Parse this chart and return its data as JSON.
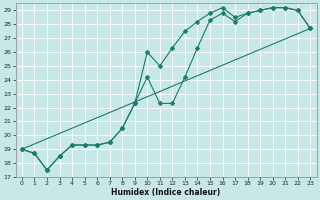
{
  "background_color": "#c8e8e8",
  "grid_color": "#aacccc",
  "line_color": "#1a7a6e",
  "xlabel": "Humidex (Indice chaleur)",
  "ylim": [
    17,
    29.5
  ],
  "xlim": [
    -0.5,
    23.5
  ],
  "yticks": [
    17,
    18,
    19,
    20,
    21,
    22,
    23,
    24,
    25,
    26,
    27,
    28,
    29
  ],
  "xticks": [
    0,
    1,
    2,
    3,
    4,
    5,
    6,
    7,
    8,
    9,
    10,
    11,
    12,
    13,
    14,
    15,
    16,
    17,
    18,
    19,
    20,
    21,
    22,
    23
  ],
  "line1_x": [
    0,
    1,
    2,
    3,
    4,
    5,
    6,
    7,
    8,
    9,
    10,
    11,
    12,
    13,
    14,
    15,
    16,
    17,
    18,
    19,
    20,
    21,
    22,
    23
  ],
  "line1_y": [
    19.0,
    18.7,
    17.5,
    18.5,
    19.3,
    19.3,
    19.3,
    19.5,
    20.5,
    22.3,
    26.0,
    25.0,
    26.3,
    27.5,
    28.2,
    28.8,
    29.2,
    28.5,
    28.8,
    29.0,
    29.2,
    29.2,
    29.0,
    27.7
  ],
  "line2_x": [
    0,
    1,
    2,
    3,
    4,
    5,
    6,
    7,
    8,
    9,
    10,
    11,
    12,
    13,
    14,
    15,
    16,
    17,
    18,
    19,
    20,
    21,
    22,
    23
  ],
  "line2_y": [
    19.0,
    18.7,
    17.5,
    18.5,
    19.3,
    19.3,
    19.3,
    19.5,
    20.5,
    22.3,
    24.2,
    22.3,
    22.3,
    24.2,
    26.3,
    28.3,
    28.8,
    28.2,
    28.8,
    29.0,
    29.2,
    29.2,
    29.0,
    27.7
  ],
  "line3_x": [
    0,
    23
  ],
  "line3_y": [
    19.0,
    27.7
  ],
  "marker_size": 2.5,
  "linewidth": 0.8
}
